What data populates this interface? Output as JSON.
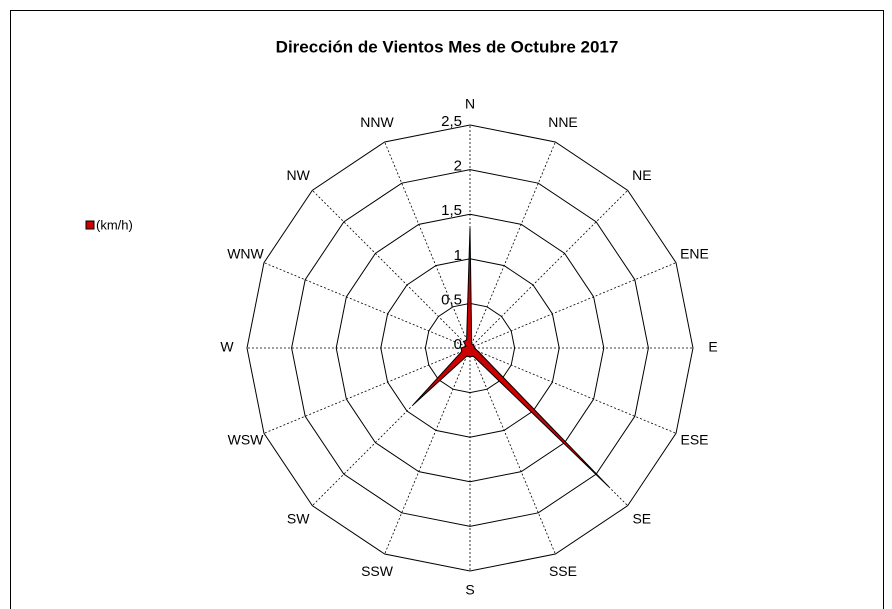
{
  "chart_data": {
    "type": "radar",
    "title": "Dirección de Vientos Mes de Octubre 2017",
    "categories": [
      "N",
      "NNE",
      "NE",
      "ENE",
      "E",
      "ESE",
      "SE",
      "SSE",
      "S",
      "SSW",
      "SW",
      "WSW",
      "W",
      "WNW",
      "NW",
      "NNW"
    ],
    "series": [
      {
        "name": "(km/h)",
        "color": "#cc0000",
        "values": [
          1.35,
          0.05,
          0.05,
          0.05,
          0.05,
          0.1,
          2.2,
          0.1,
          0.1,
          0.1,
          0.9,
          0.1,
          0.1,
          0.05,
          0.1,
          0.1
        ]
      }
    ],
    "ylim": [
      0,
      2.5
    ],
    "yticks": [
      0,
      {
        "value": 0.5,
        "label": "0,5"
      },
      1,
      {
        "value": 1.5,
        "label": "1,5"
      },
      2,
      {
        "value": 2.5,
        "label": "2,5"
      }
    ],
    "grid": true,
    "legend": "left"
  }
}
